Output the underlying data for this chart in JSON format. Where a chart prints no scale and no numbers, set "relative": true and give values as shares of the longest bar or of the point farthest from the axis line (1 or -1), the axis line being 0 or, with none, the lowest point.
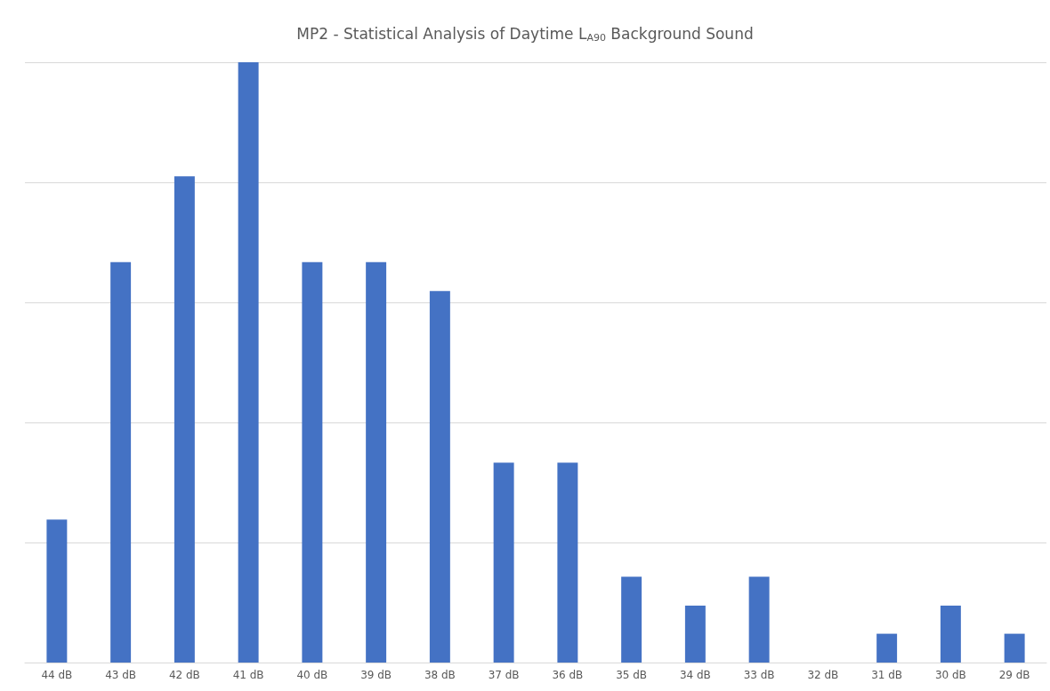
{
  "chart_data": {
    "type": "bar",
    "title": "MP2 - Statistical Analysis of Daytime L$_{A90}$ Background Sound",
    "categories": [
      "44 dB",
      "43 dB",
      "42 dB",
      "41 dB",
      "40 dB",
      "39 dB",
      "38 dB",
      "37 dB",
      "36 dB",
      "35 dB",
      "34 dB",
      "33 dB",
      "32 dB",
      "31 dB",
      "30 dB",
      "29 dB"
    ],
    "values": [
      0.238,
      0.667,
      0.81,
      1,
      0.667,
      0.667,
      0.619,
      0.333,
      0.333,
      0.143,
      0.095,
      0.143,
      0,
      0.048,
      0.095,
      0.048
    ],
    "color": "#4472c4",
    "relative": true,
    "grid": "y"
  }
}
